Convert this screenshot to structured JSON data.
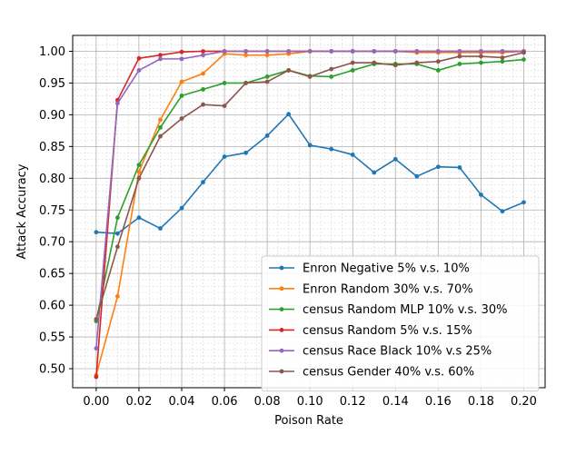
{
  "chart_data": {
    "type": "line",
    "title": "",
    "xlabel": "Poison Rate",
    "ylabel": "Attack Accuracy",
    "xlim": [
      -0.011,
      0.21
    ],
    "ylim": [
      0.47,
      1.025
    ],
    "x_ticks": [
      0.0,
      0.02,
      0.04,
      0.06,
      0.08,
      0.1,
      0.12,
      0.14,
      0.16,
      0.18,
      0.2
    ],
    "x_tick_labels": [
      "0.00",
      "0.02",
      "0.04",
      "0.06",
      "0.08",
      "0.10",
      "0.12",
      "0.14",
      "0.16",
      "0.18",
      "0.20"
    ],
    "y_ticks": [
      0.5,
      0.55,
      0.6,
      0.65,
      0.7,
      0.75,
      0.8,
      0.85,
      0.9,
      0.95,
      1.0
    ],
    "y_tick_labels": [
      "0.50",
      "0.55",
      "0.60",
      "0.65",
      "0.70",
      "0.75",
      "0.80",
      "0.85",
      "0.90",
      "0.95",
      "1.00"
    ],
    "grid": true,
    "minor_grid": true,
    "legend_position": "lower-right",
    "series": [
      {
        "name": "Enron Negative 5% v.s. 10%",
        "color": "#1f77b4",
        "x": [
          0.0,
          0.01,
          0.02,
          0.03,
          0.04,
          0.05,
          0.06,
          0.07,
          0.08,
          0.09,
          0.1,
          0.11,
          0.12,
          0.13,
          0.14,
          0.15,
          0.16,
          0.17,
          0.18,
          0.19,
          0.2
        ],
        "y": [
          0.715,
          0.713,
          0.738,
          0.721,
          0.753,
          0.794,
          0.834,
          0.84,
          0.867,
          0.901,
          0.852,
          0.846,
          0.837,
          0.809,
          0.83,
          0.803,
          0.818,
          0.817,
          0.774,
          0.748,
          0.762
        ]
      },
      {
        "name": "Enron Random 30% v.s. 70%",
        "color": "#ff7f0e",
        "x": [
          0.0,
          0.01,
          0.02,
          0.03,
          0.04,
          0.05,
          0.06,
          0.07,
          0.08,
          0.09,
          0.1,
          0.11,
          0.12,
          0.13,
          0.14,
          0.15,
          0.16,
          0.17,
          0.18,
          0.19,
          0.2
        ],
        "y": [
          0.49,
          0.614,
          0.81,
          0.892,
          0.952,
          0.965,
          0.996,
          0.994,
          0.994,
          0.996,
          1.0,
          1.0,
          1.0,
          1.0,
          1.0,
          0.998,
          0.998,
          0.998,
          0.998,
          0.998,
          1.0
        ]
      },
      {
        "name": "census Random MLP 10% v.s. 30%",
        "color": "#2ca02c",
        "x": [
          0.0,
          0.01,
          0.02,
          0.03,
          0.04,
          0.05,
          0.06,
          0.07,
          0.08,
          0.09,
          0.1,
          0.11,
          0.12,
          0.13,
          0.14,
          0.15,
          0.16,
          0.17,
          0.18,
          0.19,
          0.2
        ],
        "y": [
          0.575,
          0.738,
          0.821,
          0.88,
          0.93,
          0.94,
          0.95,
          0.95,
          0.96,
          0.97,
          0.961,
          0.96,
          0.97,
          0.98,
          0.98,
          0.98,
          0.97,
          0.98,
          0.982,
          0.984,
          0.987
        ]
      },
      {
        "name": "census Random 5% v.s. 15%",
        "color": "#d62728",
        "x": [
          0.0,
          0.01,
          0.02,
          0.03,
          0.04,
          0.05,
          0.06,
          0.07,
          0.08,
          0.09,
          0.1,
          0.11,
          0.12,
          0.13,
          0.14,
          0.15,
          0.16,
          0.17,
          0.18,
          0.19,
          0.2
        ],
        "y": [
          0.487,
          0.923,
          0.989,
          0.994,
          0.999,
          1.0,
          1.0,
          1.0,
          1.0,
          1.0,
          1.0,
          1.0,
          1.0,
          1.0,
          1.0,
          1.0,
          1.0,
          1.0,
          1.0,
          1.0,
          1.0
        ]
      },
      {
        "name": "census Race Black 10% v.s 25%",
        "color": "#9467bd",
        "x": [
          0.0,
          0.01,
          0.02,
          0.03,
          0.04,
          0.05,
          0.06,
          0.07,
          0.08,
          0.09,
          0.1,
          0.11,
          0.12,
          0.13,
          0.14,
          0.15,
          0.16,
          0.17,
          0.18,
          0.19,
          0.2
        ],
        "y": [
          0.532,
          0.918,
          0.97,
          0.988,
          0.988,
          0.994,
          1.0,
          1.0,
          1.0,
          1.0,
          1.0,
          1.0,
          1.0,
          1.0,
          1.0,
          1.0,
          1.0,
          1.0,
          1.0,
          1.0,
          1.0
        ]
      },
      {
        "name": "census Gender 40% v.s. 60%",
        "color": "#8c564b",
        "x": [
          0.0,
          0.01,
          0.02,
          0.03,
          0.04,
          0.05,
          0.06,
          0.07,
          0.08,
          0.09,
          0.1,
          0.11,
          0.12,
          0.13,
          0.14,
          0.15,
          0.16,
          0.17,
          0.18,
          0.19,
          0.2
        ],
        "y": [
          0.578,
          0.692,
          0.8,
          0.866,
          0.894,
          0.916,
          0.914,
          0.95,
          0.952,
          0.97,
          0.96,
          0.972,
          0.982,
          0.982,
          0.978,
          0.982,
          0.984,
          0.992,
          0.992,
          0.99,
          0.998
        ]
      }
    ]
  }
}
